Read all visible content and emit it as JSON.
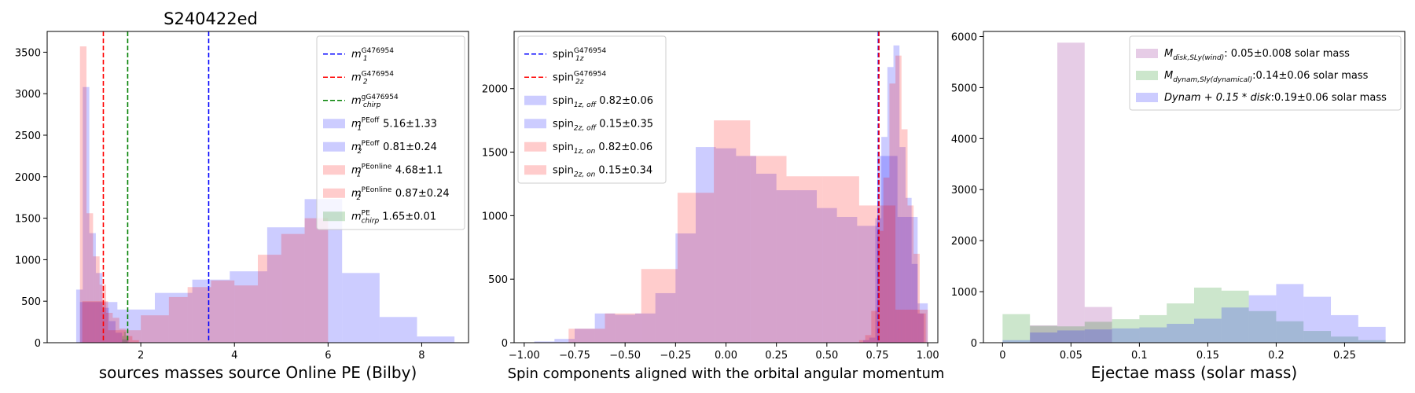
{
  "chart_data": [
    {
      "type": "histogram",
      "title": "S240422ed",
      "xlabel": "sources masses source Online PE (Bilby)",
      "ylabel": "",
      "xlim": [
        0.0,
        9.0
      ],
      "ylim": [
        0,
        3750
      ],
      "xticks": [
        2,
        4,
        6,
        8
      ],
      "yticks": [
        0,
        500,
        1000,
        1500,
        2000,
        2500,
        3000,
        3500
      ],
      "legend_position": "upper right",
      "vlines": [
        {
          "x": 3.45,
          "color": "#0000ff",
          "label_base": "m",
          "label_sub": "1",
          "label_sup": "G476954"
        },
        {
          "x": 1.2,
          "color": "#ff0000",
          "label_base": "m",
          "label_sub": "2",
          "label_sup": "G476954"
        },
        {
          "x": 1.72,
          "color": "#008000",
          "label_base": "m",
          "label_sub": "chirp",
          "label_sup": "gG476954"
        }
      ],
      "series": [
        {
          "name_base": "m",
          "name_sub": "1",
          "name_sup": "PEoff",
          "name_tail": " 5.16±1.33",
          "color": "#0000ff",
          "opacity": 0.2,
          "bins": [
            [
              0.7,
              1.5,
              490
            ],
            [
              1.5,
              2.3,
              400
            ],
            [
              2.3,
              3.1,
              600
            ],
            [
              3.1,
              3.9,
              760
            ],
            [
              3.9,
              4.7,
              860
            ],
            [
              4.7,
              5.5,
              1390
            ],
            [
              5.5,
              6.3,
              1730
            ],
            [
              6.3,
              7.1,
              840
            ],
            [
              7.1,
              7.9,
              310
            ],
            [
              7.9,
              8.7,
              75
            ]
          ]
        },
        {
          "name_base": "m",
          "name_sub": "2",
          "name_sup": "PEoff",
          "name_tail": " 0.81±0.24",
          "color": "#0000ff",
          "opacity": 0.2,
          "bins": [
            [
              0.62,
              0.76,
              640
            ],
            [
              0.76,
              0.9,
              3080
            ],
            [
              0.9,
              1.04,
              1320
            ],
            [
              1.04,
              1.18,
              840
            ],
            [
              1.18,
              1.32,
              420
            ],
            [
              1.32,
              1.46,
              260
            ],
            [
              1.46,
              1.6,
              120
            ],
            [
              1.6,
              1.74,
              40
            ]
          ]
        },
        {
          "name_base": "m",
          "name_sub": "1",
          "name_sup": "PEonline",
          "name_tail": " 4.68±1.1",
          "color": "#ff0000",
          "opacity": 0.2,
          "bins": [
            [
              0.75,
              1.3,
              500
            ],
            [
              1.3,
              2.0,
              150
            ],
            [
              2.0,
              2.6,
              330
            ],
            [
              2.6,
              3.0,
              550
            ],
            [
              3.0,
              3.5,
              670
            ],
            [
              3.5,
              4.0,
              750
            ],
            [
              4.0,
              4.5,
              690
            ],
            [
              4.5,
              5.0,
              1060
            ],
            [
              5.0,
              5.5,
              1310
            ],
            [
              5.5,
              6.0,
              1500
            ],
            [
              6.0,
              6.5,
              0
            ]
          ]
        },
        {
          "name_base": "m",
          "name_sub": "2",
          "name_sup": "PEonline",
          "name_tail": " 0.87±0.24",
          "color": "#ff0000",
          "opacity": 0.2,
          "bins": [
            [
              0.7,
              0.84,
              3570
            ],
            [
              0.84,
              0.98,
              1560
            ],
            [
              0.98,
              1.12,
              1040
            ],
            [
              1.12,
              1.26,
              700
            ],
            [
              1.26,
              1.4,
              360
            ],
            [
              1.4,
              1.54,
              300
            ],
            [
              1.54,
              1.68,
              170
            ],
            [
              1.68,
              1.82,
              80
            ],
            [
              1.82,
              1.96,
              30
            ]
          ]
        },
        {
          "name_base": "m",
          "name_sub": "chirp",
          "name_sup": "PE",
          "name_tail": " 1.65±0.01",
          "color": "#008000",
          "opacity": 0.2,
          "bins": [
            [
              1.6,
              1.64,
              80
            ],
            [
              1.64,
              1.68,
              130
            ],
            [
              1.68,
              1.72,
              90
            ]
          ]
        }
      ]
    },
    {
      "type": "histogram",
      "title": "",
      "xlabel": "Spin components aligned with the orbital angular momentum",
      "ylabel": "",
      "xlim": [
        -1.05,
        1.05
      ],
      "ylim": [
        0,
        2450
      ],
      "xticks": [
        -1.0,
        -0.75,
        -0.5,
        -0.25,
        0.0,
        0.25,
        0.5,
        0.75,
        1.0
      ],
      "xtick_labels": [
        "−1.00",
        "−0.75",
        "−0.50",
        "−0.25",
        "0.00",
        "0.25",
        "0.50",
        "0.75",
        "1.00"
      ],
      "yticks": [
        0,
        500,
        1000,
        1500,
        2000
      ],
      "legend_position": "upper left",
      "vlines": [
        {
          "x": 0.755,
          "color": "#0000ff",
          "label_base": "spin",
          "label_sub": "1z",
          "label_sup": "G476954"
        },
        {
          "x": 0.758,
          "color": "#ff0000",
          "label_base": "spin",
          "label_sub": "2z",
          "label_sup": "G476954"
        }
      ],
      "series": [
        {
          "name_base": "spin",
          "name_sub": "1z, off",
          "name_sup": "",
          "name_tail": " 0.82±0.06",
          "color": "#0000ff",
          "opacity": 0.2,
          "bins": [
            [
              0.68,
              0.71,
              20
            ],
            [
              0.71,
              0.74,
              40
            ],
            [
              0.74,
              0.77,
              980
            ],
            [
              0.77,
              0.8,
              1620
            ],
            [
              0.8,
              0.83,
              2170
            ],
            [
              0.83,
              0.86,
              2340
            ],
            [
              0.86,
              0.89,
              1540
            ],
            [
              0.89,
              0.92,
              1140
            ],
            [
              0.92,
              0.95,
              620
            ],
            [
              0.95,
              0.98,
              230
            ]
          ]
        },
        {
          "name_base": "spin",
          "name_sub": "2z, off",
          "name_sup": "",
          "name_tail": " 0.15±0.35",
          "color": "#0000ff",
          "opacity": 0.2,
          "bins": [
            [
              -0.95,
              -0.85,
              10
            ],
            [
              -0.85,
              -0.75,
              30
            ],
            [
              -0.75,
              -0.65,
              110
            ],
            [
              -0.65,
              -0.55,
              230
            ],
            [
              -0.55,
              -0.45,
              220
            ],
            [
              -0.45,
              -0.35,
              230
            ],
            [
              -0.35,
              -0.25,
              390
            ],
            [
              -0.25,
              -0.15,
              860
            ],
            [
              -0.15,
              -0.05,
              1540
            ],
            [
              -0.05,
              0.05,
              1530
            ],
            [
              0.05,
              0.15,
              1470
            ],
            [
              0.15,
              0.25,
              1330
            ],
            [
              0.25,
              0.35,
              1200
            ],
            [
              0.35,
              0.45,
              1200
            ],
            [
              0.45,
              0.55,
              1060
            ],
            [
              0.55,
              0.65,
              990
            ],
            [
              0.65,
              0.75,
              920
            ],
            [
              0.75,
              0.85,
              1470
            ],
            [
              0.85,
              0.95,
              990
            ],
            [
              0.95,
              1.0,
              310
            ]
          ]
        },
        {
          "name_base": "spin",
          "name_sub": "1z, on",
          "name_sup": "",
          "name_tail": " 0.82±0.06",
          "color": "#ff0000",
          "opacity": 0.2,
          "bins": [
            [
              0.66,
              0.69,
              20
            ],
            [
              0.69,
              0.72,
              60
            ],
            [
              0.72,
              0.75,
              250
            ],
            [
              0.75,
              0.78,
              880
            ],
            [
              0.78,
              0.81,
              1300
            ],
            [
              0.81,
              0.84,
              2040
            ],
            [
              0.84,
              0.87,
              2260
            ],
            [
              0.87,
              0.9,
              1680
            ],
            [
              0.9,
              0.93,
              1080
            ],
            [
              0.93,
              0.96,
              700
            ],
            [
              0.96,
              0.99,
              230
            ]
          ]
        },
        {
          "name_base": "spin",
          "name_sub": "2z, on",
          "name_sup": "",
          "name_tail": " 0.15±0.34",
          "color": "#ff0000",
          "opacity": 0.2,
          "bins": [
            [
              -0.78,
              -0.6,
              110
            ],
            [
              -0.6,
              -0.42,
              230
            ],
            [
              -0.42,
              -0.24,
              580
            ],
            [
              -0.24,
              -0.06,
              1180
            ],
            [
              -0.06,
              0.12,
              1750
            ],
            [
              0.12,
              0.3,
              1470
            ],
            [
              0.3,
              0.48,
              1310
            ],
            [
              0.48,
              0.66,
              1310
            ],
            [
              0.66,
              0.84,
              1080
            ],
            [
              0.84,
              1.0,
              260
            ]
          ]
        }
      ]
    },
    {
      "type": "histogram",
      "title": "",
      "xlabel": "Ejectae mass (solar mass)",
      "ylabel": "",
      "xlim": [
        -0.014,
        0.294
      ],
      "ylim": [
        0,
        6100
      ],
      "xticks": [
        0.0,
        0.05,
        0.1,
        0.15,
        0.2,
        0.25
      ],
      "yticks": [
        0,
        1000,
        2000,
        3000,
        4000,
        5000,
        6000
      ],
      "legend_position": "upper right",
      "vlines": [],
      "series": [
        {
          "name_base": "M",
          "name_sub": "disk,SLy(wind)",
          "name_sup": "",
          "name_tail": ": 0.05±0.008 solar mass",
          "color": "#800080",
          "opacity": 0.2,
          "bins": [
            [
              0.0,
              0.02,
              0
            ],
            [
              0.02,
              0.04,
              340
            ],
            [
              0.04,
              0.06,
              5880
            ],
            [
              0.06,
              0.08,
              700
            ],
            [
              0.08,
              0.1,
              0
            ]
          ]
        },
        {
          "name_base": "M",
          "name_sub": "dynam,Sly(dynamical)",
          "name_sup": "",
          "name_tail": ":0.14±0.06 solar mass",
          "color": "#008000",
          "opacity": 0.2,
          "bins": [
            [
              0.0,
              0.02,
              560
            ],
            [
              0.02,
              0.04,
              330
            ],
            [
              0.04,
              0.06,
              320
            ],
            [
              0.06,
              0.08,
              410
            ],
            [
              0.08,
              0.1,
              460
            ],
            [
              0.1,
              0.12,
              540
            ],
            [
              0.12,
              0.14,
              770
            ],
            [
              0.14,
              0.16,
              1080
            ],
            [
              0.16,
              0.18,
              1020
            ],
            [
              0.18,
              0.2,
              620
            ],
            [
              0.2,
              0.22,
              420
            ],
            [
              0.22,
              0.24,
              230
            ],
            [
              0.24,
              0.26,
              120
            ],
            [
              0.26,
              0.28,
              50
            ]
          ]
        },
        {
          "name_base": "Dynam + 0.15 * disk",
          "name_sub": "",
          "name_sup": "",
          "name_tail": ":0.19±0.06 solar mass",
          "color": "#0000ff",
          "opacity": 0.2,
          "bins": [
            [
              0.0,
              0.02,
              50
            ],
            [
              0.02,
              0.04,
              200
            ],
            [
              0.04,
              0.06,
              240
            ],
            [
              0.06,
              0.08,
              260
            ],
            [
              0.08,
              0.1,
              280
            ],
            [
              0.1,
              0.12,
              300
            ],
            [
              0.12,
              0.14,
              370
            ],
            [
              0.14,
              0.16,
              470
            ],
            [
              0.16,
              0.18,
              690
            ],
            [
              0.18,
              0.2,
              930
            ],
            [
              0.2,
              0.22,
              1150
            ],
            [
              0.22,
              0.24,
              900
            ],
            [
              0.24,
              0.26,
              540
            ],
            [
              0.26,
              0.28,
              310
            ]
          ]
        }
      ]
    }
  ]
}
